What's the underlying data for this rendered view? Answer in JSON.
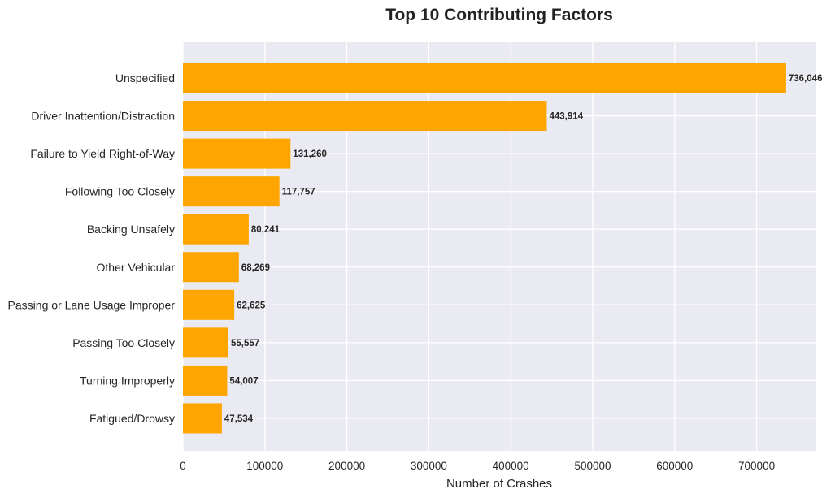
{
  "chart_data": {
    "type": "bar",
    "orientation": "horizontal",
    "title": "Top 10 Contributing Factors",
    "xlabel": "Number of Crashes",
    "ylabel": "",
    "categories": [
      "Unspecified",
      "Driver Inattention/Distraction",
      "Failure to Yield Right-of-Way",
      "Following Too Closely",
      "Backing Unsafely",
      "Other Vehicular",
      "Passing or Lane Usage Improper",
      "Passing Too Closely",
      "Turning Improperly",
      "Fatigued/Drowsy"
    ],
    "values": [
      736046,
      443914,
      131260,
      117757,
      80241,
      68269,
      62625,
      55557,
      54007,
      47534
    ],
    "data_labels": [
      "736,046",
      "443,914",
      "131,260",
      "117,757",
      "80,241",
      "68,269",
      "62,625",
      "55,557",
      "54,007",
      "47,534"
    ],
    "xticks": [
      0,
      100000,
      200000,
      300000,
      400000,
      500000,
      600000,
      700000
    ],
    "xtick_labels": [
      "0",
      "100000",
      "200000",
      "300000",
      "400000",
      "500000",
      "600000",
      "700000"
    ],
    "xlim": [
      0,
      772848
    ],
    "grid": true,
    "colors": {
      "bar": "#FFA500",
      "plot_background": "#EAEAF2",
      "grid": "#FFFFFF",
      "text": "#262626"
    }
  }
}
